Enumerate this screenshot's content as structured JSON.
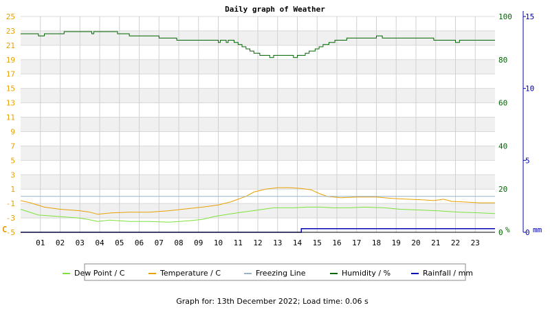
{
  "chart_data": {
    "type": "line",
    "title": "Daily graph of Weather",
    "x_tick_labels": [
      "01",
      "02",
      "03",
      "04",
      "05",
      "06",
      "07",
      "08",
      "09",
      "10",
      "11",
      "12",
      "13",
      "14",
      "15",
      "16",
      "17",
      "18",
      "19",
      "20",
      "21",
      "22",
      "23"
    ],
    "x_range_hours": [
      0,
      24
    ],
    "y_left": {
      "unit_label": "C",
      "range": [
        -5,
        25
      ],
      "ticks": [
        "25",
        "23",
        "21",
        "19",
        "17",
        "15",
        "13",
        "11",
        "9",
        "7",
        "5",
        "3",
        "1",
        "-1",
        "-3",
        "-5"
      ],
      "color": "#e8a000"
    },
    "y_right_humidity": {
      "unit_label": "%",
      "range": [
        0,
        100
      ],
      "ticks": [
        "100",
        "80",
        "60",
        "40",
        "20",
        "0"
      ],
      "color": "#006400"
    },
    "y_right_rainfall": {
      "unit_label": "mm",
      "range": [
        0,
        15
      ],
      "ticks": [
        "15",
        "10",
        "5",
        "0"
      ],
      "color": "#0000b4"
    },
    "grid": true,
    "legend_position": "bottom",
    "series": [
      {
        "name": "Dew Point / C",
        "color": "#7de23a",
        "axis": "left",
        "points": [
          [
            0,
            -1.8
          ],
          [
            0.9,
            -2.6
          ],
          [
            1.9,
            -2.8
          ],
          [
            2.9,
            -3.0
          ],
          [
            3.4,
            -3.2
          ],
          [
            3.9,
            -3.5
          ],
          [
            4.5,
            -3.3
          ],
          [
            5.5,
            -3.5
          ],
          [
            6.5,
            -3.5
          ],
          [
            7.5,
            -3.6
          ],
          [
            8.5,
            -3.4
          ],
          [
            9.2,
            -3.2
          ],
          [
            9.8,
            -2.8
          ],
          [
            10.5,
            -2.5
          ],
          [
            11.2,
            -2.2
          ],
          [
            12.0,
            -1.9
          ],
          [
            12.8,
            -1.6
          ],
          [
            13.8,
            -1.6
          ],
          [
            14.5,
            -1.5
          ],
          [
            15.2,
            -1.5
          ],
          [
            15.8,
            -1.6
          ],
          [
            16.6,
            -1.6
          ],
          [
            17.4,
            -1.5
          ],
          [
            18.4,
            -1.6
          ],
          [
            19.2,
            -1.8
          ],
          [
            20.2,
            -1.9
          ],
          [
            21.0,
            -2.0
          ],
          [
            21.6,
            -2.1
          ],
          [
            22.2,
            -2.2
          ],
          [
            23.2,
            -2.3
          ],
          [
            24.0,
            -2.4
          ]
        ]
      },
      {
        "name": "Temperature / C",
        "color": "#e8a000",
        "axis": "left",
        "points": [
          [
            0,
            -0.6
          ],
          [
            0.5,
            -0.9
          ],
          [
            1.2,
            -1.5
          ],
          [
            2.0,
            -1.8
          ],
          [
            3.0,
            -2.0
          ],
          [
            3.5,
            -2.2
          ],
          [
            3.9,
            -2.5
          ],
          [
            4.6,
            -2.3
          ],
          [
            5.5,
            -2.2
          ],
          [
            6.5,
            -2.2
          ],
          [
            7.5,
            -2.0
          ],
          [
            8.5,
            -1.7
          ],
          [
            9.2,
            -1.5
          ],
          [
            10.0,
            -1.2
          ],
          [
            10.6,
            -0.8
          ],
          [
            11.0,
            -0.4
          ],
          [
            11.4,
            0.0
          ],
          [
            11.8,
            0.6
          ],
          [
            12.4,
            1.0
          ],
          [
            13.0,
            1.2
          ],
          [
            13.6,
            1.2
          ],
          [
            14.2,
            1.1
          ],
          [
            14.7,
            0.9
          ],
          [
            15.1,
            0.4
          ],
          [
            15.5,
            0.0
          ],
          [
            16.2,
            -0.2
          ],
          [
            17.0,
            -0.1
          ],
          [
            18.0,
            -0.1
          ],
          [
            18.8,
            -0.3
          ],
          [
            19.6,
            -0.4
          ],
          [
            20.4,
            -0.5
          ],
          [
            20.9,
            -0.6
          ],
          [
            21.4,
            -0.4
          ],
          [
            21.8,
            -0.7
          ],
          [
            22.5,
            -0.8
          ],
          [
            23.2,
            -0.9
          ],
          [
            24.0,
            -0.9
          ]
        ]
      },
      {
        "name": "Freezing Line",
        "color": "#96b4c8",
        "axis": "left",
        "points": [
          [
            0,
            0
          ],
          [
            24,
            0
          ]
        ]
      },
      {
        "name": "Humidity / %",
        "color": "#006400",
        "axis": "humidity",
        "points": [
          [
            0,
            92
          ],
          [
            0.9,
            92
          ],
          [
            0.9,
            91
          ],
          [
            1.2,
            91
          ],
          [
            1.2,
            92
          ],
          [
            2.2,
            92
          ],
          [
            2.2,
            93
          ],
          [
            3.6,
            93
          ],
          [
            3.6,
            92
          ],
          [
            3.7,
            92
          ],
          [
            3.7,
            93
          ],
          [
            4.9,
            93
          ],
          [
            4.9,
            92
          ],
          [
            5.5,
            92
          ],
          [
            5.5,
            91
          ],
          [
            7.0,
            91
          ],
          [
            7.0,
            90
          ],
          [
            7.9,
            90
          ],
          [
            7.9,
            89
          ],
          [
            10.0,
            89
          ],
          [
            10.0,
            88
          ],
          [
            10.1,
            88
          ],
          [
            10.1,
            89
          ],
          [
            10.4,
            89
          ],
          [
            10.4,
            88
          ],
          [
            10.5,
            88
          ],
          [
            10.5,
            89
          ],
          [
            10.8,
            89
          ],
          [
            10.8,
            88
          ],
          [
            11.0,
            88
          ],
          [
            11.0,
            87
          ],
          [
            11.2,
            87
          ],
          [
            11.2,
            86
          ],
          [
            11.4,
            86
          ],
          [
            11.4,
            85
          ],
          [
            11.6,
            85
          ],
          [
            11.6,
            84
          ],
          [
            11.8,
            84
          ],
          [
            11.8,
            83
          ],
          [
            12.1,
            83
          ],
          [
            12.1,
            82
          ],
          [
            12.6,
            82
          ],
          [
            12.6,
            81
          ],
          [
            12.8,
            81
          ],
          [
            12.8,
            82
          ],
          [
            13.8,
            82
          ],
          [
            13.8,
            81
          ],
          [
            14.0,
            81
          ],
          [
            14.0,
            82
          ],
          [
            14.4,
            82
          ],
          [
            14.4,
            83
          ],
          [
            14.6,
            83
          ],
          [
            14.6,
            84
          ],
          [
            14.9,
            84
          ],
          [
            14.9,
            85
          ],
          [
            15.1,
            85
          ],
          [
            15.1,
            86
          ],
          [
            15.3,
            86
          ],
          [
            15.3,
            87
          ],
          [
            15.6,
            87
          ],
          [
            15.6,
            88
          ],
          [
            15.9,
            88
          ],
          [
            15.9,
            89
          ],
          [
            16.5,
            89
          ],
          [
            16.5,
            90
          ],
          [
            18.0,
            90
          ],
          [
            18.0,
            91
          ],
          [
            18.3,
            91
          ],
          [
            18.3,
            90
          ],
          [
            20.9,
            90
          ],
          [
            20.9,
            89
          ],
          [
            22.0,
            89
          ],
          [
            22.0,
            88
          ],
          [
            22.2,
            88
          ],
          [
            22.2,
            89
          ],
          [
            24.0,
            89
          ]
        ]
      },
      {
        "name": "Rainfall / mm",
        "color": "#0000b4",
        "axis": "rainfall",
        "points": [
          [
            0,
            0
          ],
          [
            14.2,
            0
          ],
          [
            14.2,
            0.25
          ],
          [
            24.0,
            0.25
          ]
        ]
      }
    ]
  },
  "footer": {
    "text": "Graph for: 13th December 2022; Load time: 0.06 s"
  }
}
